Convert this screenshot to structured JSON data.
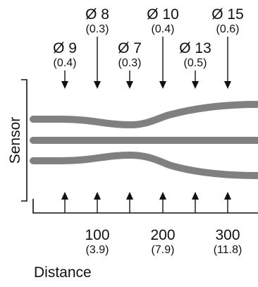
{
  "colors": {
    "ink": "#111111",
    "tube": "#808080",
    "background": "#ffffff"
  },
  "beam_labels": [
    {
      "diameter": "Ø 9",
      "inch": "(0.4)"
    },
    {
      "diameter": "Ø 8",
      "inch": "(0.3)"
    },
    {
      "diameter": "Ø 7",
      "inch": "(0.3)"
    },
    {
      "diameter": "Ø 10",
      "inch": "(0.4)"
    },
    {
      "diameter": "Ø 13",
      "inch": "(0.5)"
    },
    {
      "diameter": "Ø 15",
      "inch": "(0.6)"
    }
  ],
  "distance_ticks": [
    {
      "value": "100",
      "inch": "(3.9)"
    },
    {
      "value": "200",
      "inch": "(7.9)"
    },
    {
      "value": "300",
      "inch": "(11.8)"
    }
  ],
  "y_label": "Sensor",
  "x_label": "Distance"
}
